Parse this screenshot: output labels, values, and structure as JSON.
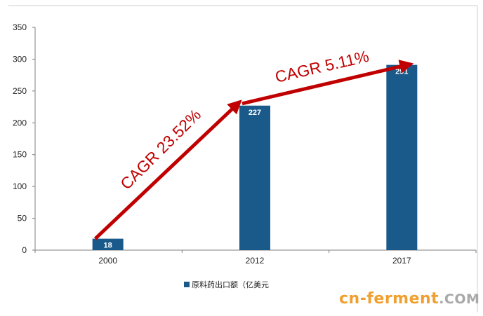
{
  "chart_data": {
    "type": "bar",
    "categories": [
      "2000",
      "2012",
      "2017"
    ],
    "series": [
      {
        "name": "原料药出口额（亿美元",
        "values": [
          18,
          227,
          291
        ]
      }
    ],
    "ylim": [
      0,
      350
    ],
    "yticks": [
      "0",
      "50",
      "100",
      "150",
      "200",
      "250",
      "300",
      "350"
    ],
    "legend_position": "bottom-center",
    "grid": false,
    "annotations": [
      {
        "text": "CAGR 23.52%",
        "from": "2000",
        "to": "2012"
      },
      {
        "text": "CAGR 5.11%",
        "from": "2012",
        "to": "2017"
      }
    ],
    "colors": {
      "bar": "#1a5a8a",
      "arrow": "#c00000",
      "bar_label": "#ffffff"
    }
  },
  "watermark": {
    "main": "cn-ferment",
    "tld": ".COM"
  }
}
